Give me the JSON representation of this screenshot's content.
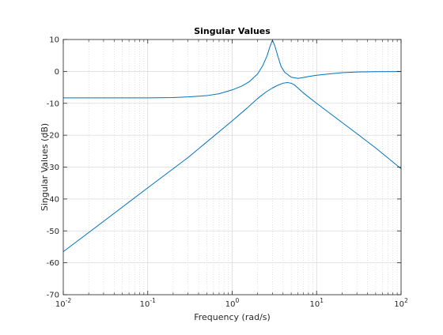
{
  "chart_data": {
    "type": "line",
    "title": "Singular Values",
    "xlabel": "Frequency (rad/s)",
    "ylabel": "Singular Values (dB)",
    "xscale": "log",
    "xlim": [
      0.01,
      100
    ],
    "ylim": [
      -70,
      10
    ],
    "grid": "on",
    "legend": "none",
    "x_ticks": [
      {
        "value": 0.01,
        "base": "10",
        "exp": "-2"
      },
      {
        "value": 0.1,
        "base": "10",
        "exp": "-1"
      },
      {
        "value": 1,
        "base": "10",
        "exp": "0"
      },
      {
        "value": 10,
        "base": "10",
        "exp": "1"
      },
      {
        "value": 100,
        "base": "10",
        "exp": "2"
      }
    ],
    "y_ticks": [
      10,
      0,
      -10,
      -20,
      -30,
      -40,
      -50,
      -60,
      -70
    ],
    "series": [
      {
        "color": "#0072bd",
        "x": [
          0.01,
          0.03,
          0.1,
          0.2,
          0.3,
          0.5,
          0.7,
          1.0,
          1.3,
          1.6,
          2.0,
          2.3,
          2.6,
          2.8,
          3.0,
          3.2,
          3.5,
          3.8,
          4.2,
          5.0,
          6.0,
          7.0,
          8.0,
          10,
          15,
          20,
          30,
          50,
          100
        ],
        "y": [
          -8.3,
          -8.3,
          -8.3,
          -8.2,
          -8.0,
          -7.6,
          -7.0,
          -5.8,
          -4.6,
          -3.2,
          -0.8,
          1.8,
          5.0,
          7.8,
          9.8,
          8.0,
          4.5,
          1.5,
          -0.3,
          -1.8,
          -2.2,
          -1.9,
          -1.6,
          -1.2,
          -0.7,
          -0.4,
          -0.2,
          -0.1,
          -0.05
        ]
      },
      {
        "color": "#0072bd",
        "x": [
          0.01,
          0.03,
          0.1,
          0.3,
          1.0,
          1.5,
          2.0,
          2.5,
          3.0,
          3.5,
          4.0,
          4.5,
          5.0,
          5.5,
          6.0,
          7.0,
          8.0,
          10,
          20,
          30,
          50,
          100
        ],
        "y": [
          -56.5,
          -47.0,
          -36.5,
          -27.0,
          -15.5,
          -11.5,
          -8.5,
          -6.5,
          -5.2,
          -4.3,
          -3.7,
          -3.5,
          -3.7,
          -4.3,
          -5.2,
          -6.8,
          -8.0,
          -10.0,
          -16.0,
          -19.5,
          -24.0,
          -30.5
        ]
      }
    ]
  }
}
